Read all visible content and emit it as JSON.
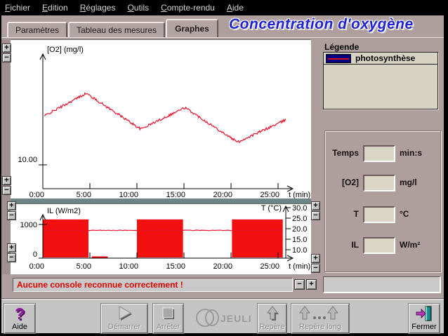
{
  "menu": {
    "items": [
      {
        "label": "Fichier"
      },
      {
        "label": "Edition"
      },
      {
        "label": "Réglages"
      },
      {
        "label": "Outils"
      },
      {
        "label": "Compte-rendu"
      },
      {
        "label": "Aide"
      }
    ]
  },
  "tabs": [
    {
      "label": "Paramètres",
      "active": false
    },
    {
      "label": "Tableau des mesures",
      "active": false
    },
    {
      "label": "Graphes",
      "active": true
    }
  ],
  "title": "Concentration d'oxygène",
  "legend": {
    "heading": "Légende",
    "items": [
      {
        "label": "photosynthèse",
        "swatch_color": "#000080",
        "line_color": "#d01020"
      }
    ]
  },
  "readouts": {
    "rows": [
      {
        "label": "Temps",
        "value": "",
        "unit": "min:s"
      },
      {
        "label": "[O2]",
        "value": "",
        "unit": "mg/l"
      },
      {
        "label": "T",
        "value": "",
        "unit": "°C"
      },
      {
        "label": "IL",
        "value": "",
        "unit": "W/m²"
      }
    ]
  },
  "graph_controls": {
    "zoom_in_label": "+",
    "zoom_out_label": "−"
  },
  "status": {
    "message": "Aucune console reconnue correctement !",
    "color": "#dd0000"
  },
  "toolbar": {
    "help_label": "Aide",
    "start_label": "Démarrer",
    "stop_label": "Arrêter",
    "logo_text": "JEULIN",
    "marker_label": "Repère",
    "long_marker_label": "Repère long",
    "close_label": "Fermer"
  },
  "colors": {
    "title_blue": "#2121d6",
    "curve_red": "#e8122b",
    "block_red": "#f20f0f",
    "legend_navy": "#000080",
    "status_red": "#dd0000",
    "window_taupe": "#ae9e9e"
  },
  "chart_data": [
    {
      "type": "line",
      "id": "o2",
      "ylabel": "[O2] (mg/l)",
      "xlabel": "t (min)",
      "x_tick_labels": [
        "0:00",
        "5:00",
        "10:00",
        "15:00",
        "20:00",
        "25:00"
      ],
      "x_tick_minutes": [
        0,
        5,
        10,
        15,
        20,
        25
      ],
      "x_range_min": [
        0,
        26.5
      ],
      "y_tick": {
        "label": "10.00",
        "value": 10.0
      },
      "series": [
        {
          "name": "photosynthèse",
          "color": "#e8122b",
          "keypoints_min_mgl": [
            [
              0.15,
              12.05
            ],
            [
              4.6,
              13.0
            ],
            [
              10.4,
              11.5
            ],
            [
              15.1,
              12.4
            ],
            [
              20.7,
              10.95
            ],
            [
              25.9,
              11.9
            ]
          ],
          "noise_mgl": 0.05
        }
      ]
    },
    {
      "type": "area+line",
      "id": "il_t",
      "xlabel": "t (min)",
      "x_tick_labels": [
        "0:00",
        "5:00",
        "10:00",
        "15:00",
        "20:00",
        "25:00"
      ],
      "x_tick_minutes": [
        0,
        5,
        10,
        15,
        20,
        25
      ],
      "left_axis": {
        "label": "IL (W/m2)",
        "ticks": [
          {
            "label": "1000",
            "value": 1000
          },
          {
            "label": "0",
            "value": 0
          }
        ]
      },
      "right_axis": {
        "label": "T (°C)",
        "tick_labels": [
          "30.0",
          "25.0",
          "20.0",
          "15.0",
          "10.0"
        ],
        "tick_values": [
          30,
          25,
          20,
          15,
          10
        ]
      },
      "il_series": {
        "name": "IL",
        "color": "#f20f0f",
        "on_value": 1150,
        "off_value": 0,
        "on_intervals_min": [
          [
            0,
            4.85
          ],
          [
            10.0,
            14.9
          ],
          [
            20.1,
            25.5
          ]
        ],
        "off_visible_segments_min": [
          [
            5.2,
            6.9
          ]
        ]
      },
      "t_series": {
        "name": "T",
        "color": "#e8122b",
        "value_c": 19.2,
        "noise_c": 0.15
      }
    }
  ]
}
